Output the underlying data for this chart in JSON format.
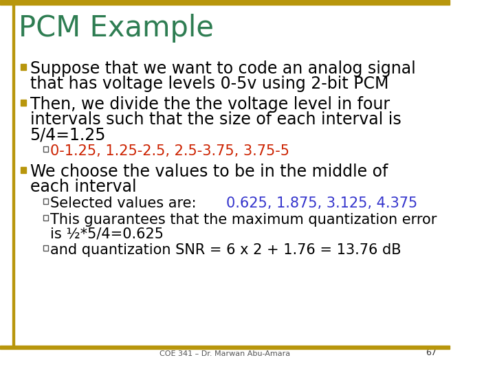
{
  "title": "PCM Example",
  "title_color": "#2E7D52",
  "background_color": "#FFFFFF",
  "border_color": "#B8960C",
  "bullet_color": "#B8960C",
  "footer_text": "COE 341 – Dr. Marwan Abu-Amara",
  "page_number": "67",
  "main_fs": 17,
  "sub_fs": 15,
  "title_fs": 30
}
